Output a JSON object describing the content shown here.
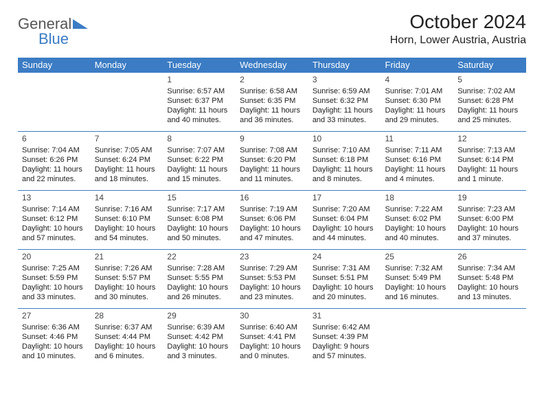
{
  "logo": {
    "general": "General",
    "blue": "Blue"
  },
  "header": {
    "month_title": "October 2024",
    "location": "Horn, Lower Austria, Austria"
  },
  "colors": {
    "header_bg": "#3b7cc4",
    "header_text": "#ffffff",
    "border": "#3b7cc4",
    "cell_text": "#222222",
    "logo_blue": "#3b7cc4",
    "logo_gray": "#555555"
  },
  "weekdays": [
    "Sunday",
    "Monday",
    "Tuesday",
    "Wednesday",
    "Thursday",
    "Friday",
    "Saturday"
  ],
  "weeks": [
    [
      null,
      null,
      {
        "n": "1",
        "sr": "Sunrise: 6:57 AM",
        "ss": "Sunset: 6:37 PM",
        "dl": "Daylight: 11 hours and 40 minutes."
      },
      {
        "n": "2",
        "sr": "Sunrise: 6:58 AM",
        "ss": "Sunset: 6:35 PM",
        "dl": "Daylight: 11 hours and 36 minutes."
      },
      {
        "n": "3",
        "sr": "Sunrise: 6:59 AM",
        "ss": "Sunset: 6:32 PM",
        "dl": "Daylight: 11 hours and 33 minutes."
      },
      {
        "n": "4",
        "sr": "Sunrise: 7:01 AM",
        "ss": "Sunset: 6:30 PM",
        "dl": "Daylight: 11 hours and 29 minutes."
      },
      {
        "n": "5",
        "sr": "Sunrise: 7:02 AM",
        "ss": "Sunset: 6:28 PM",
        "dl": "Daylight: 11 hours and 25 minutes."
      }
    ],
    [
      {
        "n": "6",
        "sr": "Sunrise: 7:04 AM",
        "ss": "Sunset: 6:26 PM",
        "dl": "Daylight: 11 hours and 22 minutes."
      },
      {
        "n": "7",
        "sr": "Sunrise: 7:05 AM",
        "ss": "Sunset: 6:24 PM",
        "dl": "Daylight: 11 hours and 18 minutes."
      },
      {
        "n": "8",
        "sr": "Sunrise: 7:07 AM",
        "ss": "Sunset: 6:22 PM",
        "dl": "Daylight: 11 hours and 15 minutes."
      },
      {
        "n": "9",
        "sr": "Sunrise: 7:08 AM",
        "ss": "Sunset: 6:20 PM",
        "dl": "Daylight: 11 hours and 11 minutes."
      },
      {
        "n": "10",
        "sr": "Sunrise: 7:10 AM",
        "ss": "Sunset: 6:18 PM",
        "dl": "Daylight: 11 hours and 8 minutes."
      },
      {
        "n": "11",
        "sr": "Sunrise: 7:11 AM",
        "ss": "Sunset: 6:16 PM",
        "dl": "Daylight: 11 hours and 4 minutes."
      },
      {
        "n": "12",
        "sr": "Sunrise: 7:13 AM",
        "ss": "Sunset: 6:14 PM",
        "dl": "Daylight: 11 hours and 1 minute."
      }
    ],
    [
      {
        "n": "13",
        "sr": "Sunrise: 7:14 AM",
        "ss": "Sunset: 6:12 PM",
        "dl": "Daylight: 10 hours and 57 minutes."
      },
      {
        "n": "14",
        "sr": "Sunrise: 7:16 AM",
        "ss": "Sunset: 6:10 PM",
        "dl": "Daylight: 10 hours and 54 minutes."
      },
      {
        "n": "15",
        "sr": "Sunrise: 7:17 AM",
        "ss": "Sunset: 6:08 PM",
        "dl": "Daylight: 10 hours and 50 minutes."
      },
      {
        "n": "16",
        "sr": "Sunrise: 7:19 AM",
        "ss": "Sunset: 6:06 PM",
        "dl": "Daylight: 10 hours and 47 minutes."
      },
      {
        "n": "17",
        "sr": "Sunrise: 7:20 AM",
        "ss": "Sunset: 6:04 PM",
        "dl": "Daylight: 10 hours and 44 minutes."
      },
      {
        "n": "18",
        "sr": "Sunrise: 7:22 AM",
        "ss": "Sunset: 6:02 PM",
        "dl": "Daylight: 10 hours and 40 minutes."
      },
      {
        "n": "19",
        "sr": "Sunrise: 7:23 AM",
        "ss": "Sunset: 6:00 PM",
        "dl": "Daylight: 10 hours and 37 minutes."
      }
    ],
    [
      {
        "n": "20",
        "sr": "Sunrise: 7:25 AM",
        "ss": "Sunset: 5:59 PM",
        "dl": "Daylight: 10 hours and 33 minutes."
      },
      {
        "n": "21",
        "sr": "Sunrise: 7:26 AM",
        "ss": "Sunset: 5:57 PM",
        "dl": "Daylight: 10 hours and 30 minutes."
      },
      {
        "n": "22",
        "sr": "Sunrise: 7:28 AM",
        "ss": "Sunset: 5:55 PM",
        "dl": "Daylight: 10 hours and 26 minutes."
      },
      {
        "n": "23",
        "sr": "Sunrise: 7:29 AM",
        "ss": "Sunset: 5:53 PM",
        "dl": "Daylight: 10 hours and 23 minutes."
      },
      {
        "n": "24",
        "sr": "Sunrise: 7:31 AM",
        "ss": "Sunset: 5:51 PM",
        "dl": "Daylight: 10 hours and 20 minutes."
      },
      {
        "n": "25",
        "sr": "Sunrise: 7:32 AM",
        "ss": "Sunset: 5:49 PM",
        "dl": "Daylight: 10 hours and 16 minutes."
      },
      {
        "n": "26",
        "sr": "Sunrise: 7:34 AM",
        "ss": "Sunset: 5:48 PM",
        "dl": "Daylight: 10 hours and 13 minutes."
      }
    ],
    [
      {
        "n": "27",
        "sr": "Sunrise: 6:36 AM",
        "ss": "Sunset: 4:46 PM",
        "dl": "Daylight: 10 hours and 10 minutes."
      },
      {
        "n": "28",
        "sr": "Sunrise: 6:37 AM",
        "ss": "Sunset: 4:44 PM",
        "dl": "Daylight: 10 hours and 6 minutes."
      },
      {
        "n": "29",
        "sr": "Sunrise: 6:39 AM",
        "ss": "Sunset: 4:42 PM",
        "dl": "Daylight: 10 hours and 3 minutes."
      },
      {
        "n": "30",
        "sr": "Sunrise: 6:40 AM",
        "ss": "Sunset: 4:41 PM",
        "dl": "Daylight: 10 hours and 0 minutes."
      },
      {
        "n": "31",
        "sr": "Sunrise: 6:42 AM",
        "ss": "Sunset: 4:39 PM",
        "dl": "Daylight: 9 hours and 57 minutes."
      },
      null,
      null
    ]
  ]
}
